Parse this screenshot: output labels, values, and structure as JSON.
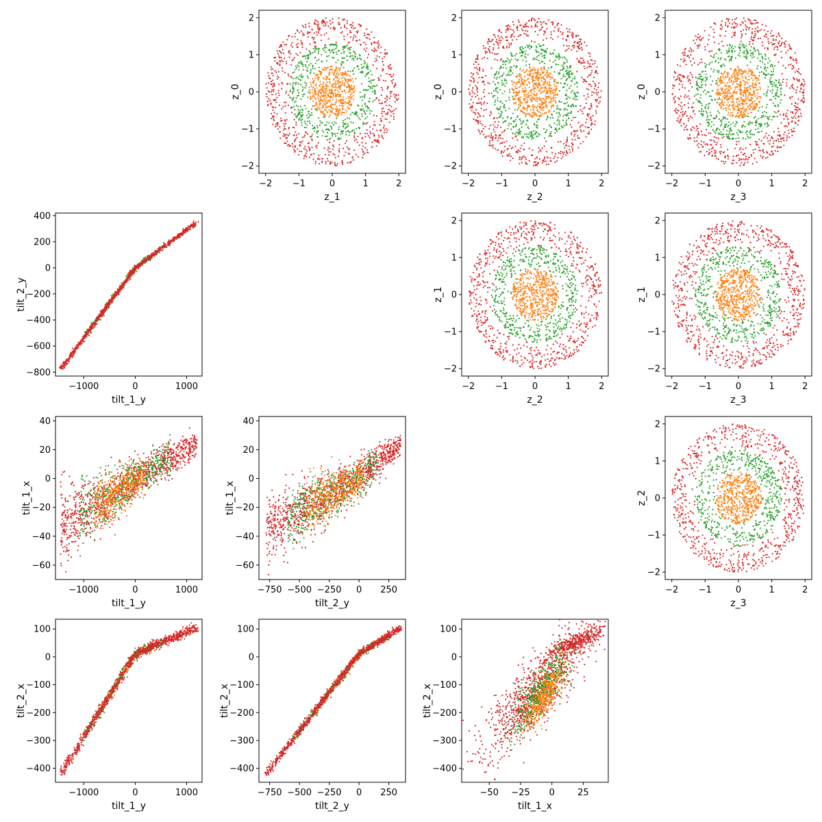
{
  "figure": {
    "type": "pairwise-scatter-matrix",
    "colors": {
      "ring_outer": "#d62728",
      "ring_mid": "#2ca02c",
      "ring_inner": "#ff7f0e"
    }
  },
  "chart_data": [
    {
      "id": "z1-vs-z0",
      "type": "scatter",
      "row": 0,
      "col": 1,
      "xlabel": "z_1",
      "ylabel": "z_0",
      "xlim": [
        -2.2,
        2.2
      ],
      "ylim": [
        -2.2,
        2.2
      ],
      "xticks": [
        -2,
        -1,
        0,
        1,
        2
      ],
      "yticks": [
        -2,
        -1,
        0,
        1,
        2
      ],
      "xtick_labels": [
        "−2",
        "−1",
        "0",
        "1",
        "2"
      ],
      "ytick_labels": [
        "−2",
        "−1",
        "0",
        "1",
        "2"
      ],
      "shape": "rings",
      "series": [
        {
          "color_key": "ring_outer",
          "r_range": [
            1.25,
            2.0
          ],
          "count": 700
        },
        {
          "color_key": "ring_mid",
          "r_range": [
            0.65,
            1.3
          ],
          "count": 500
        },
        {
          "color_key": "ring_inner",
          "r_range": [
            0.0,
            0.7
          ],
          "count": 500
        }
      ]
    },
    {
      "id": "z2-vs-z0",
      "type": "scatter",
      "row": 0,
      "col": 2,
      "xlabel": "z_2",
      "ylabel": "z_0",
      "xlim": [
        -2.2,
        2.2
      ],
      "ylim": [
        -2.2,
        2.2
      ],
      "xticks": [
        -2,
        -1,
        0,
        1,
        2
      ],
      "yticks": [
        -2,
        -1,
        0,
        1,
        2
      ],
      "xtick_labels": [
        "−2",
        "−1",
        "0",
        "1",
        "2"
      ],
      "ytick_labels": [
        "−2",
        "−1",
        "0",
        "1",
        "2"
      ],
      "shape": "rings",
      "series": [
        {
          "color_key": "ring_outer",
          "r_range": [
            1.25,
            2.0
          ],
          "count": 700
        },
        {
          "color_key": "ring_mid",
          "r_range": [
            0.65,
            1.3
          ],
          "count": 500
        },
        {
          "color_key": "ring_inner",
          "r_range": [
            0.0,
            0.7
          ],
          "count": 500
        }
      ]
    },
    {
      "id": "z3-vs-z0",
      "type": "scatter",
      "row": 0,
      "col": 3,
      "xlabel": "z_3",
      "ylabel": "z_0",
      "xlim": [
        -2.2,
        2.2
      ],
      "ylim": [
        -2.2,
        2.2
      ],
      "xticks": [
        -2,
        -1,
        0,
        1,
        2
      ],
      "yticks": [
        -2,
        -1,
        0,
        1,
        2
      ],
      "xtick_labels": [
        "−2",
        "−1",
        "0",
        "1",
        "2"
      ],
      "ytick_labels": [
        "−2",
        "−1",
        "0",
        "1",
        "2"
      ],
      "shape": "rings",
      "series": [
        {
          "color_key": "ring_outer",
          "r_range": [
            1.25,
            2.0
          ],
          "count": 700
        },
        {
          "color_key": "ring_mid",
          "r_range": [
            0.65,
            1.3
          ],
          "count": 500
        },
        {
          "color_key": "ring_inner",
          "r_range": [
            0.0,
            0.7
          ],
          "count": 500
        }
      ]
    },
    {
      "id": "tilt1y-vs-tilt2y",
      "type": "scatter",
      "row": 1,
      "col": 0,
      "xlabel": "tilt_1_y",
      "ylabel": "tilt_2_y",
      "xlim": [
        -1550,
        1300
      ],
      "ylim": [
        -830,
        420
      ],
      "xticks": [
        -1000,
        0,
        1000
      ],
      "yticks": [
        -800,
        -600,
        -400,
        -200,
        0,
        200,
        400
      ],
      "xtick_labels": [
        "−1000",
        "0",
        "1000"
      ],
      "ytick_labels": [
        "−800",
        "−600",
        "−400",
        "−200",
        "0",
        "200",
        "400"
      ],
      "shape": "kinked-line",
      "kink": {
        "x": [
          -1450,
          0,
          1200
        ],
        "y": [
          -780,
          0,
          350
        ]
      },
      "series": [
        {
          "color_key": "ring_inner",
          "x_range": [
            -700,
            300
          ],
          "noise": [
            15,
            6
          ],
          "count": 250
        },
        {
          "color_key": "ring_mid",
          "x_range": [
            -1000,
            600
          ],
          "noise": [
            20,
            8
          ],
          "count": 300
        },
        {
          "color_key": "ring_outer",
          "x_range": [
            -1450,
            1200
          ],
          "noise": [
            20,
            8
          ],
          "count": 900
        }
      ]
    },
    {
      "id": "z2-vs-z1",
      "type": "scatter",
      "row": 1,
      "col": 2,
      "xlabel": "z_2",
      "ylabel": "z_1",
      "xlim": [
        -2.2,
        2.2
      ],
      "ylim": [
        -2.2,
        2.2
      ],
      "xticks": [
        -2,
        -1,
        0,
        1,
        2
      ],
      "yticks": [
        -2,
        -1,
        0,
        1,
        2
      ],
      "xtick_labels": [
        "−2",
        "−1",
        "0",
        "1",
        "2"
      ],
      "ytick_labels": [
        "−2",
        "−1",
        "0",
        "1",
        "2"
      ],
      "shape": "rings",
      "series": [
        {
          "color_key": "ring_outer",
          "r_range": [
            1.25,
            2.0
          ],
          "count": 700
        },
        {
          "color_key": "ring_mid",
          "r_range": [
            0.65,
            1.3
          ],
          "count": 500
        },
        {
          "color_key": "ring_inner",
          "r_range": [
            0.0,
            0.7
          ],
          "count": 500
        }
      ]
    },
    {
      "id": "z3-vs-z1",
      "type": "scatter",
      "row": 1,
      "col": 3,
      "xlabel": "z_3",
      "ylabel": "z_1",
      "xlim": [
        -2.2,
        2.2
      ],
      "ylim": [
        -2.2,
        2.2
      ],
      "xticks": [
        -2,
        -1,
        0,
        1,
        2
      ],
      "yticks": [
        -2,
        -1,
        0,
        1,
        2
      ],
      "xtick_labels": [
        "−2",
        "−1",
        "0",
        "1",
        "2"
      ],
      "ytick_labels": [
        "−2",
        "−1",
        "0",
        "1",
        "2"
      ],
      "shape": "rings",
      "series": [
        {
          "color_key": "ring_outer",
          "r_range": [
            1.25,
            2.0
          ],
          "count": 700
        },
        {
          "color_key": "ring_mid",
          "r_range": [
            0.65,
            1.3
          ],
          "count": 500
        },
        {
          "color_key": "ring_inner",
          "r_range": [
            0.0,
            0.7
          ],
          "count": 500
        }
      ]
    },
    {
      "id": "tilt1y-vs-tilt1x",
      "type": "scatter",
      "row": 2,
      "col": 0,
      "xlabel": "tilt_1_y",
      "ylabel": "tilt_1_x",
      "xlim": [
        -1550,
        1300
      ],
      "ylim": [
        -70,
        43
      ],
      "xticks": [
        -1000,
        0,
        1000
      ],
      "yticks": [
        -60,
        -40,
        -20,
        0,
        20,
        40
      ],
      "xtick_labels": [
        "−1000",
        "0",
        "1000"
      ],
      "ytick_labels": [
        "−60",
        "−40",
        "−20",
        "0",
        "20",
        "40"
      ],
      "shape": "band",
      "band": {
        "x": [
          -1450,
          -400,
          0,
          700,
          1200
        ],
        "y": [
          -30,
          -12,
          0,
          15,
          24
        ],
        "spread": [
          22,
          14,
          10,
          10,
          6
        ]
      },
      "series": [
        {
          "color_key": "ring_outer",
          "x_range": [
            -1450,
            1200
          ],
          "count": 1100
        },
        {
          "color_key": "ring_mid",
          "x_range": [
            -1100,
            700
          ],
          "count": 450
        },
        {
          "color_key": "ring_inner",
          "x_range": [
            -800,
            200
          ],
          "count": 400
        }
      ]
    },
    {
      "id": "tilt2y-vs-tilt1x",
      "type": "scatter",
      "row": 2,
      "col": 1,
      "xlabel": "tilt_2_y",
      "ylabel": "tilt_1_x",
      "xlim": [
        -840,
        390
      ],
      "ylim": [
        -70,
        43
      ],
      "xticks": [
        -750,
        -500,
        -250,
        0,
        250
      ],
      "yticks": [
        -60,
        -40,
        -20,
        0,
        20,
        40
      ],
      "xtick_labels": [
        "−750",
        "−500",
        "−250",
        "0",
        "250"
      ],
      "ytick_labels": [
        "−60",
        "−40",
        "−20",
        "0",
        "20",
        "40"
      ],
      "shape": "band",
      "band": {
        "x": [
          -780,
          -300,
          0,
          200,
          350
        ],
        "y": [
          -35,
          -14,
          0,
          15,
          24
        ],
        "spread": [
          20,
          14,
          10,
          10,
          6
        ]
      },
      "series": [
        {
          "color_key": "ring_outer",
          "x_range": [
            -780,
            350
          ],
          "count": 1100
        },
        {
          "color_key": "ring_mid",
          "x_range": [
            -600,
            150
          ],
          "count": 450
        },
        {
          "color_key": "ring_inner",
          "x_range": [
            -450,
            50
          ],
          "count": 400
        }
      ]
    },
    {
      "id": "z3-vs-z2",
      "type": "scatter",
      "row": 2,
      "col": 3,
      "xlabel": "z_3",
      "ylabel": "z_2",
      "xlim": [
        -2.2,
        2.2
      ],
      "ylim": [
        -2.2,
        2.2
      ],
      "xticks": [
        -2,
        -1,
        0,
        1,
        2
      ],
      "yticks": [
        -2,
        -1,
        0,
        1,
        2
      ],
      "xtick_labels": [
        "−2",
        "−1",
        "0",
        "1",
        "2"
      ],
      "ytick_labels": [
        "−2",
        "−1",
        "0",
        "1",
        "2"
      ],
      "shape": "rings",
      "series": [
        {
          "color_key": "ring_outer",
          "r_range": [
            1.25,
            2.0
          ],
          "count": 700
        },
        {
          "color_key": "ring_mid",
          "r_range": [
            0.65,
            1.3
          ],
          "count": 500
        },
        {
          "color_key": "ring_inner",
          "r_range": [
            0.0,
            0.7
          ],
          "count": 500
        }
      ]
    },
    {
      "id": "tilt1y-vs-tilt2x",
      "type": "scatter",
      "row": 3,
      "col": 0,
      "xlabel": "tilt_1_y",
      "ylabel": "tilt_2_x",
      "xlim": [
        -1550,
        1300
      ],
      "ylim": [
        -450,
        135
      ],
      "xticks": [
        -1000,
        0,
        1000
      ],
      "yticks": [
        -400,
        -300,
        -200,
        -100,
        0,
        100
      ],
      "xtick_labels": [
        "−1000",
        "0",
        "1000"
      ],
      "ytick_labels": [
        "−400",
        "−300",
        "−200",
        "−100",
        "0",
        "100"
      ],
      "shape": "kinked-line",
      "kink": {
        "x": [
          -1450,
          0,
          1200
        ],
        "y": [
          -420,
          10,
          105
        ]
      },
      "series": [
        {
          "color_key": "ring_inner",
          "x_range": [
            -700,
            300
          ],
          "noise": [
            20,
            6
          ],
          "count": 250
        },
        {
          "color_key": "ring_mid",
          "x_range": [
            -1000,
            600
          ],
          "noise": [
            25,
            8
          ],
          "count": 300
        },
        {
          "color_key": "ring_outer",
          "x_range": [
            -1450,
            1200
          ],
          "noise": [
            25,
            8
          ],
          "count": 900
        }
      ]
    },
    {
      "id": "tilt2y-vs-tilt2x",
      "type": "scatter",
      "row": 3,
      "col": 1,
      "xlabel": "tilt_2_y",
      "ylabel": "tilt_2_x",
      "xlim": [
        -840,
        390
      ],
      "ylim": [
        -450,
        135
      ],
      "xticks": [
        -750,
        -500,
        -250,
        0,
        250
      ],
      "yticks": [
        -400,
        -300,
        -200,
        -100,
        0,
        100
      ],
      "xtick_labels": [
        "−750",
        "−500",
        "−250",
        "0",
        "250"
      ],
      "ytick_labels": [
        "−400",
        "−300",
        "−200",
        "−100",
        "0",
        "100"
      ],
      "shape": "kinked-line",
      "kink": {
        "x": [
          -780,
          0,
          350
        ],
        "y": [
          -420,
          10,
          105
        ]
      },
      "series": [
        {
          "color_key": "ring_inner",
          "x_range": [
            -400,
            150
          ],
          "noise": [
            10,
            5
          ],
          "count": 250
        },
        {
          "color_key": "ring_mid",
          "x_range": [
            -550,
            250
          ],
          "noise": [
            10,
            6
          ],
          "count": 300
        },
        {
          "color_key": "ring_outer",
          "x_range": [
            -780,
            350
          ],
          "noise": [
            10,
            6
          ],
          "count": 900
        }
      ]
    },
    {
      "id": "tilt1x-vs-tilt2x",
      "type": "scatter",
      "row": 3,
      "col": 2,
      "xlabel": "tilt_1_x",
      "ylabel": "tilt_2_x",
      "xlim": [
        -72,
        45
      ],
      "ylim": [
        -450,
        135
      ],
      "xticks": [
        -50,
        -25,
        0,
        25
      ],
      "yticks": [
        -400,
        -300,
        -200,
        -100,
        0,
        100
      ],
      "xtick_labels": [
        "−50",
        "−25",
        "0",
        "25"
      ],
      "ytick_labels": [
        "−400",
        "−300",
        "−200",
        "−100",
        "0",
        "100"
      ],
      "shape": "blob",
      "series": [
        {
          "color_key": "ring_outer",
          "center": [
            -12,
            -120
          ],
          "spread": [
            22,
            120
          ],
          "tilt": 4.5,
          "count": 1000
        },
        {
          "color_key": "ring_outer",
          "center": [
            20,
            55
          ],
          "spread": [
            12,
            30
          ],
          "tilt": 2.0,
          "count": 350
        },
        {
          "color_key": "ring_mid",
          "center": [
            -8,
            -120
          ],
          "spread": [
            12,
            90
          ],
          "tilt": 5.0,
          "count": 450
        },
        {
          "color_key": "ring_inner",
          "center": [
            -6,
            -140
          ],
          "spread": [
            7,
            70
          ],
          "tilt": 5.5,
          "count": 400
        }
      ]
    }
  ]
}
